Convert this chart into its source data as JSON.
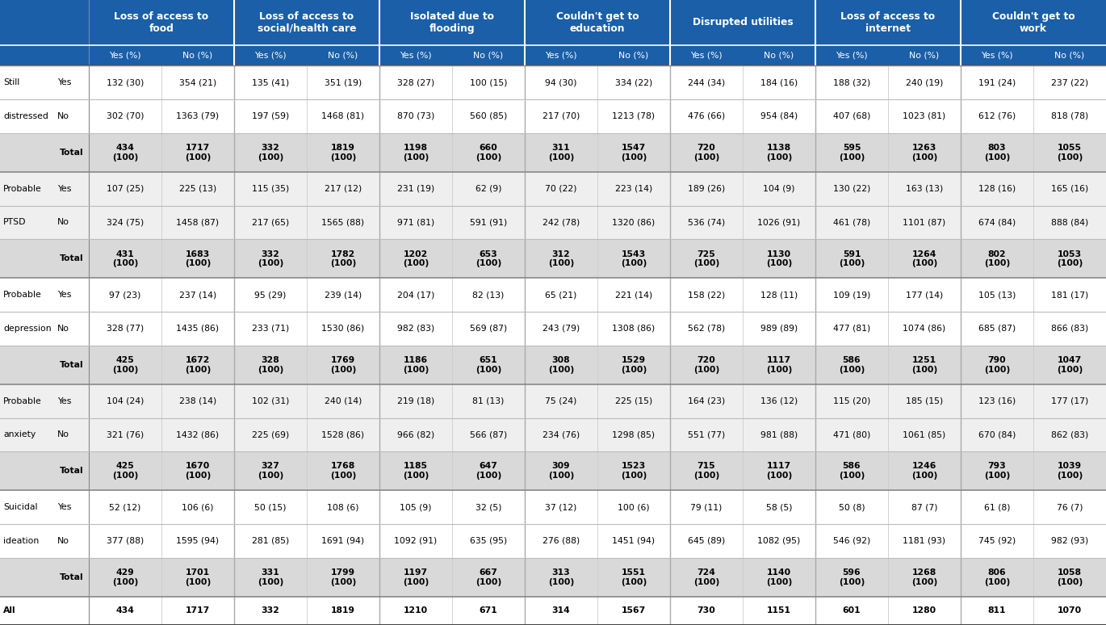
{
  "header1": [
    "Loss of access to\nfood",
    "Loss of access to\nsocial/health care",
    "Isolated due to\nflooding",
    "Couldn't get to\neducation",
    "Disrupted utilities",
    "Loss of access to\ninternet",
    "Couldn't get to\nwork"
  ],
  "subheader": [
    "Yes (%)",
    "No (%)",
    "Yes (%)",
    "No (%)",
    "Yes (%)",
    "No (%)",
    "Yes (%)",
    "No (%)",
    "Yes (%)",
    "No (%)",
    "Yes (%)",
    "No (%)",
    "Yes (%)",
    "No (%)"
  ],
  "rows": [
    [
      "132 (30)",
      "354 (21)",
      "135 (41)",
      "351 (19)",
      "328 (27)",
      "100 (15)",
      "94 (30)",
      "334 (22)",
      "244 (34)",
      "184 (16)",
      "188 (32)",
      "240 (19)",
      "191 (24)",
      "237 (22)"
    ],
    [
      "302 (70)",
      "1363 (79)",
      "197 (59)",
      "1468 (81)",
      "870 (73)",
      "560 (85)",
      "217 (70)",
      "1213 (78)",
      "476 (66)",
      "954 (84)",
      "407 (68)",
      "1023 (81)",
      "612 (76)",
      "818 (78)"
    ],
    [
      "434\n(100)",
      "1717\n(100)",
      "332\n(100)",
      "1819\n(100)",
      "1198\n(100)",
      "660\n(100)",
      "311\n(100)",
      "1547\n(100)",
      "720\n(100)",
      "1138\n(100)",
      "595\n(100)",
      "1263\n(100)",
      "803\n(100)",
      "1055\n(100)"
    ],
    [
      "107 (25)",
      "225 (13)",
      "115 (35)",
      "217 (12)",
      "231 (19)",
      "62 (9)",
      "70 (22)",
      "223 (14)",
      "189 (26)",
      "104 (9)",
      "130 (22)",
      "163 (13)",
      "128 (16)",
      "165 (16)"
    ],
    [
      "324 (75)",
      "1458 (87)",
      "217 (65)",
      "1565 (88)",
      "971 (81)",
      "591 (91)",
      "242 (78)",
      "1320 (86)",
      "536 (74)",
      "1026 (91)",
      "461 (78)",
      "1101 (87)",
      "674 (84)",
      "888 (84)"
    ],
    [
      "431\n(100)",
      "1683\n(100)",
      "332\n(100)",
      "1782\n(100)",
      "1202\n(100)",
      "653\n(100)",
      "312\n(100)",
      "1543\n(100)",
      "725\n(100)",
      "1130\n(100)",
      "591\n(100)",
      "1264\n(100)",
      "802\n(100)",
      "1053\n(100)"
    ],
    [
      "97 (23)",
      "237 (14)",
      "95 (29)",
      "239 (14)",
      "204 (17)",
      "82 (13)",
      "65 (21)",
      "221 (14)",
      "158 (22)",
      "128 (11)",
      "109 (19)",
      "177 (14)",
      "105 (13)",
      "181 (17)"
    ],
    [
      "328 (77)",
      "1435 (86)",
      "233 (71)",
      "1530 (86)",
      "982 (83)",
      "569 (87)",
      "243 (79)",
      "1308 (86)",
      "562 (78)",
      "989 (89)",
      "477 (81)",
      "1074 (86)",
      "685 (87)",
      "866 (83)"
    ],
    [
      "425\n(100)",
      "1672\n(100)",
      "328\n(100)",
      "1769\n(100)",
      "1186\n(100)",
      "651\n(100)",
      "308\n(100)",
      "1529\n(100)",
      "720\n(100)",
      "1117\n(100)",
      "586\n(100)",
      "1251\n(100)",
      "790\n(100)",
      "1047\n(100)"
    ],
    [
      "104 (24)",
      "238 (14)",
      "102 (31)",
      "240 (14)",
      "219 (18)",
      "81 (13)",
      "75 (24)",
      "225 (15)",
      "164 (23)",
      "136 (12)",
      "115 (20)",
      "185 (15)",
      "123 (16)",
      "177 (17)"
    ],
    [
      "321 (76)",
      "1432 (86)",
      "225 (69)",
      "1528 (86)",
      "966 (82)",
      "566 (87)",
      "234 (76)",
      "1298 (85)",
      "551 (77)",
      "981 (88)",
      "471 (80)",
      "1061 (85)",
      "670 (84)",
      "862 (83)"
    ],
    [
      "425\n(100)",
      "1670\n(100)",
      "327\n(100)",
      "1768\n(100)",
      "1185\n(100)",
      "647\n(100)",
      "309\n(100)",
      "1523\n(100)",
      "715\n(100)",
      "1117\n(100)",
      "586\n(100)",
      "1246\n(100)",
      "793\n(100)",
      "1039\n(100)"
    ],
    [
      "52 (12)",
      "106 (6)",
      "50 (15)",
      "108 (6)",
      "105 (9)",
      "32 (5)",
      "37 (12)",
      "100 (6)",
      "79 (11)",
      "58 (5)",
      "50 (8)",
      "87 (7)",
      "61 (8)",
      "76 (7)"
    ],
    [
      "377 (88)",
      "1595 (94)",
      "281 (85)",
      "1691 (94)",
      "1092 (91)",
      "635 (95)",
      "276 (88)",
      "1451 (94)",
      "645 (89)",
      "1082 (95)",
      "546 (92)",
      "1181 (93)",
      "745 (92)",
      "982 (93)"
    ],
    [
      "429\n(100)",
      "1701\n(100)",
      "331\n(100)",
      "1799\n(100)",
      "1197\n(100)",
      "667\n(100)",
      "313\n(100)",
      "1551\n(100)",
      "724\n(100)",
      "1140\n(100)",
      "596\n(100)",
      "1268\n(100)",
      "806\n(100)",
      "1058\n(100)"
    ],
    [
      "434",
      "1717",
      "332",
      "1819",
      "1210",
      "671",
      "314",
      "1567",
      "730",
      "1151",
      "601",
      "1280",
      "811",
      "1070"
    ]
  ],
  "row_is_total": [
    false,
    false,
    true,
    false,
    false,
    true,
    false,
    false,
    true,
    false,
    false,
    true,
    false,
    false,
    true,
    false
  ],
  "row_is_all": [
    false,
    false,
    false,
    false,
    false,
    false,
    false,
    false,
    false,
    false,
    false,
    false,
    false,
    false,
    false,
    true
  ],
  "row_labels_col1": [
    "Still",
    "distressed",
    "",
    "Probable",
    "PTSD",
    "",
    "Probable",
    "depression",
    "",
    "Probable",
    "anxiety",
    "",
    "Suicidal",
    "ideation",
    "",
    "All"
  ],
  "row_labels_col2": [
    "Yes",
    "No",
    "Total",
    "Yes",
    "No",
    "Total",
    "Yes",
    "No",
    "Total",
    "Yes",
    "No",
    "Total",
    "Yes",
    "No",
    "Total",
    ""
  ],
  "header_bg": "#1a5fa8",
  "header_text": "#ffffff",
  "total_bg": "#d9d9d9",
  "group_bg": [
    "#ffffff",
    "#efefef",
    "#ffffff",
    "#efefef",
    "#ffffff",
    "#ffffff"
  ]
}
